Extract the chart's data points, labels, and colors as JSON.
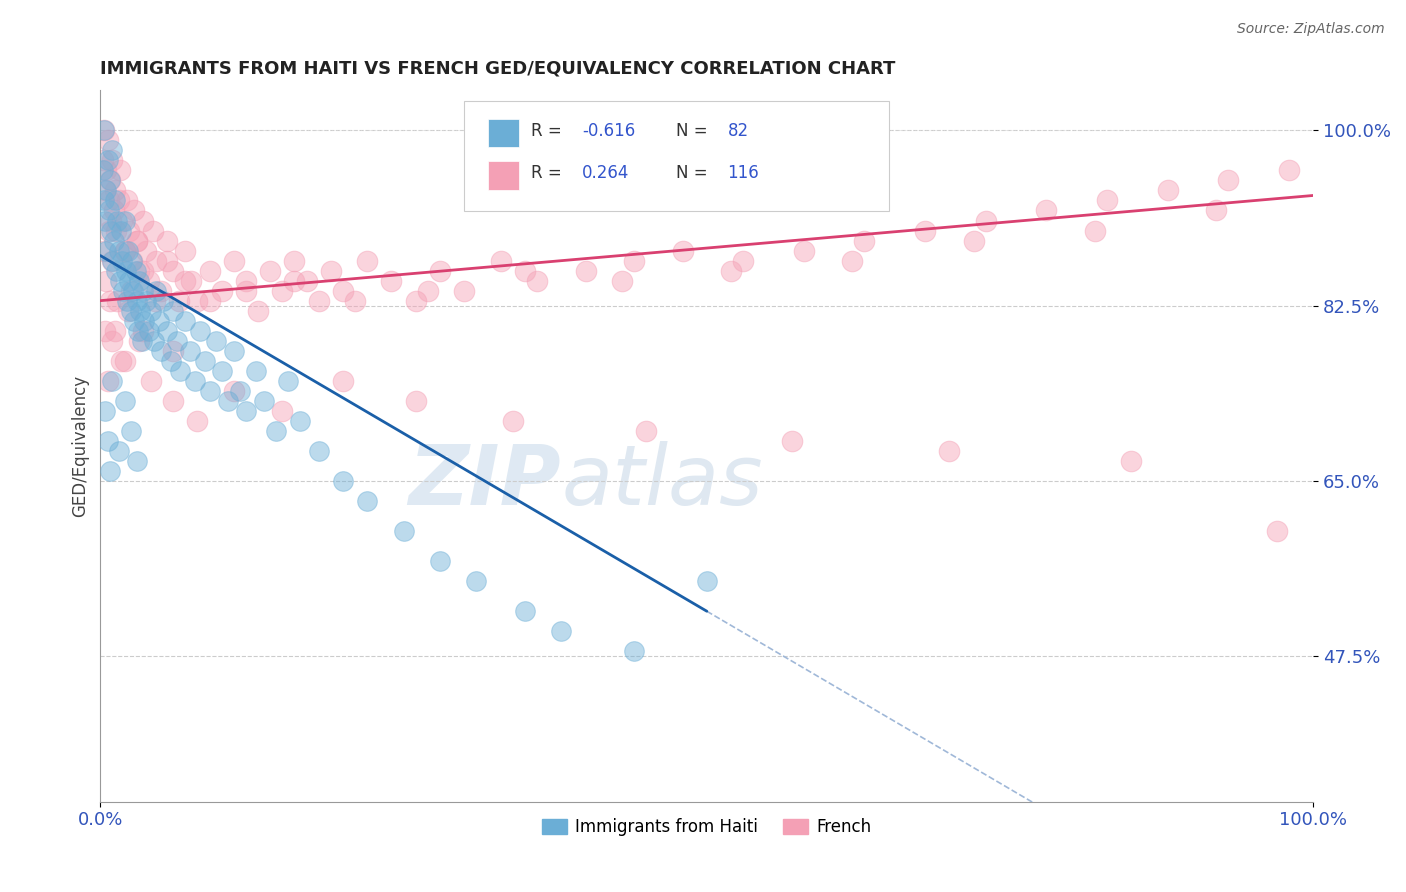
{
  "title": "IMMIGRANTS FROM HAITI VS FRENCH GED/EQUIVALENCY CORRELATION CHART",
  "source_text": "Source: ZipAtlas.com",
  "ylabel": "GED/Equivalency",
  "xlim": [
    0.0,
    100.0
  ],
  "ylim": [
    33.0,
    104.0
  ],
  "yticks": [
    47.5,
    65.0,
    82.5,
    100.0
  ],
  "xticks": [
    0.0,
    100.0
  ],
  "xtick_labels": [
    "0.0%",
    "100.0%"
  ],
  "ytick_labels": [
    "47.5%",
    "65.0%",
    "82.5%",
    "100.0%"
  ],
  "legend_label1": "Immigrants from Haiti",
  "legend_label2": "French",
  "blue_color": "#6baed6",
  "pink_color": "#f4a0b5",
  "trend_blue": "#1a5fa8",
  "trend_pink": "#d94070",
  "dashed_blue": "#a0b8d8",
  "watermark_zip": "ZIP",
  "watermark_atlas": "atlas",
  "haiti_x": [
    0.2,
    0.3,
    0.3,
    0.4,
    0.5,
    0.5,
    0.6,
    0.7,
    0.8,
    0.9,
    1.0,
    1.0,
    1.1,
    1.2,
    1.3,
    1.4,
    1.5,
    1.6,
    1.7,
    1.8,
    1.9,
    2.0,
    2.1,
    2.2,
    2.3,
    2.4,
    2.5,
    2.6,
    2.7,
    2.8,
    2.9,
    3.0,
    3.1,
    3.2,
    3.3,
    3.4,
    3.5,
    3.6,
    3.8,
    4.0,
    4.2,
    4.4,
    4.6,
    4.8,
    5.0,
    5.2,
    5.5,
    5.8,
    6.0,
    6.3,
    6.6,
    7.0,
    7.4,
    7.8,
    8.2,
    8.6,
    9.0,
    9.5,
    10.0,
    10.5,
    11.0,
    11.5,
    12.0,
    12.8,
    13.5,
    14.5,
    15.5,
    16.5,
    18.0,
    20.0,
    22.0,
    25.0,
    28.0,
    31.0,
    35.0,
    38.0,
    44.0,
    50.0,
    0.4,
    0.6,
    0.8,
    1.0,
    1.5,
    2.0,
    2.5,
    3.0
  ],
  "haiti_y": [
    96.0,
    100.0,
    93.0,
    91.0,
    94.0,
    88.0,
    97.0,
    92.0,
    95.0,
    90.0,
    87.0,
    98.0,
    89.0,
    93.0,
    86.0,
    91.0,
    88.0,
    85.0,
    90.0,
    87.0,
    84.0,
    91.0,
    86.0,
    83.0,
    88.0,
    85.0,
    82.0,
    87.0,
    84.0,
    81.0,
    86.0,
    83.0,
    80.0,
    85.0,
    82.0,
    79.0,
    84.0,
    81.0,
    83.0,
    80.0,
    82.0,
    79.0,
    84.0,
    81.0,
    78.0,
    83.0,
    80.0,
    77.0,
    82.0,
    79.0,
    76.0,
    81.0,
    78.0,
    75.0,
    80.0,
    77.0,
    74.0,
    79.0,
    76.0,
    73.0,
    78.0,
    74.0,
    72.0,
    76.0,
    73.0,
    70.0,
    75.0,
    71.0,
    68.0,
    65.0,
    63.0,
    60.0,
    57.0,
    55.0,
    52.0,
    50.0,
    48.0,
    55.0,
    72.0,
    69.0,
    66.0,
    75.0,
    68.0,
    73.0,
    70.0,
    67.0
  ],
  "french_x": [
    0.2,
    0.3,
    0.4,
    0.5,
    0.6,
    0.7,
    0.8,
    0.9,
    1.0,
    1.1,
    1.2,
    1.3,
    1.5,
    1.6,
    1.8,
    2.0,
    2.2,
    2.4,
    2.6,
    2.8,
    3.0,
    3.2,
    3.5,
    3.8,
    4.0,
    4.3,
    4.6,
    5.0,
    5.5,
    6.0,
    6.5,
    7.0,
    7.5,
    8.0,
    9.0,
    10.0,
    11.0,
    12.0,
    13.0,
    14.0,
    15.0,
    16.0,
    17.0,
    18.0,
    19.0,
    20.0,
    22.0,
    24.0,
    26.0,
    28.0,
    30.0,
    33.0,
    36.0,
    40.0,
    44.0,
    48.0,
    53.0,
    58.0,
    63.0,
    68.0,
    73.0,
    78.0,
    83.0,
    88.0,
    93.0,
    98.0,
    0.3,
    0.5,
    0.7,
    1.0,
    1.4,
    2.0,
    2.5,
    3.0,
    3.5,
    4.5,
    5.5,
    7.0,
    9.0,
    12.0,
    16.0,
    21.0,
    27.0,
    35.0,
    43.0,
    52.0,
    62.0,
    72.0,
    82.0,
    92.0,
    0.4,
    0.8,
    1.2,
    1.7,
    2.3,
    3.2,
    4.2,
    6.0,
    8.0,
    11.0,
    15.0,
    20.0,
    26.0,
    34.0,
    45.0,
    57.0,
    70.0,
    85.0,
    97.0,
    0.6,
    1.0,
    2.0,
    3.5,
    6.0
  ],
  "french_y": [
    97.0,
    100.0,
    94.0,
    96.0,
    99.0,
    93.0,
    95.0,
    91.0,
    97.0,
    92.0,
    94.0,
    90.0,
    93.0,
    96.0,
    91.0,
    88.0,
    93.0,
    90.0,
    87.0,
    92.0,
    89.0,
    86.0,
    91.0,
    88.0,
    85.0,
    90.0,
    87.0,
    84.0,
    89.0,
    86.0,
    83.0,
    88.0,
    85.0,
    83.0,
    86.0,
    84.0,
    87.0,
    85.0,
    82.0,
    86.0,
    84.0,
    87.0,
    85.0,
    83.0,
    86.0,
    84.0,
    87.0,
    85.0,
    83.0,
    86.0,
    84.0,
    87.0,
    85.0,
    86.0,
    87.0,
    88.0,
    87.0,
    88.0,
    89.0,
    90.0,
    91.0,
    92.0,
    93.0,
    94.0,
    95.0,
    96.0,
    88.0,
    85.0,
    90.0,
    87.0,
    83.0,
    88.0,
    84.0,
    89.0,
    86.0,
    83.0,
    87.0,
    85.0,
    83.0,
    84.0,
    85.0,
    83.0,
    84.0,
    86.0,
    85.0,
    86.0,
    87.0,
    89.0,
    90.0,
    92.0,
    80.0,
    83.0,
    80.0,
    77.0,
    82.0,
    79.0,
    75.0,
    73.0,
    71.0,
    74.0,
    72.0,
    75.0,
    73.0,
    71.0,
    70.0,
    69.0,
    68.0,
    67.0,
    60.0,
    75.0,
    79.0,
    77.0,
    80.0,
    78.0
  ],
  "haiti_trend_x0": 0.0,
  "haiti_trend_y0": 87.5,
  "haiti_trend_x1": 50.0,
  "haiti_trend_y1": 52.0,
  "haiti_solid_end": 50.0,
  "haiti_dash_end": 100.0,
  "french_trend_x0": 0.0,
  "french_trend_y0": 83.0,
  "french_trend_x1": 100.0,
  "french_trend_y1": 93.5
}
